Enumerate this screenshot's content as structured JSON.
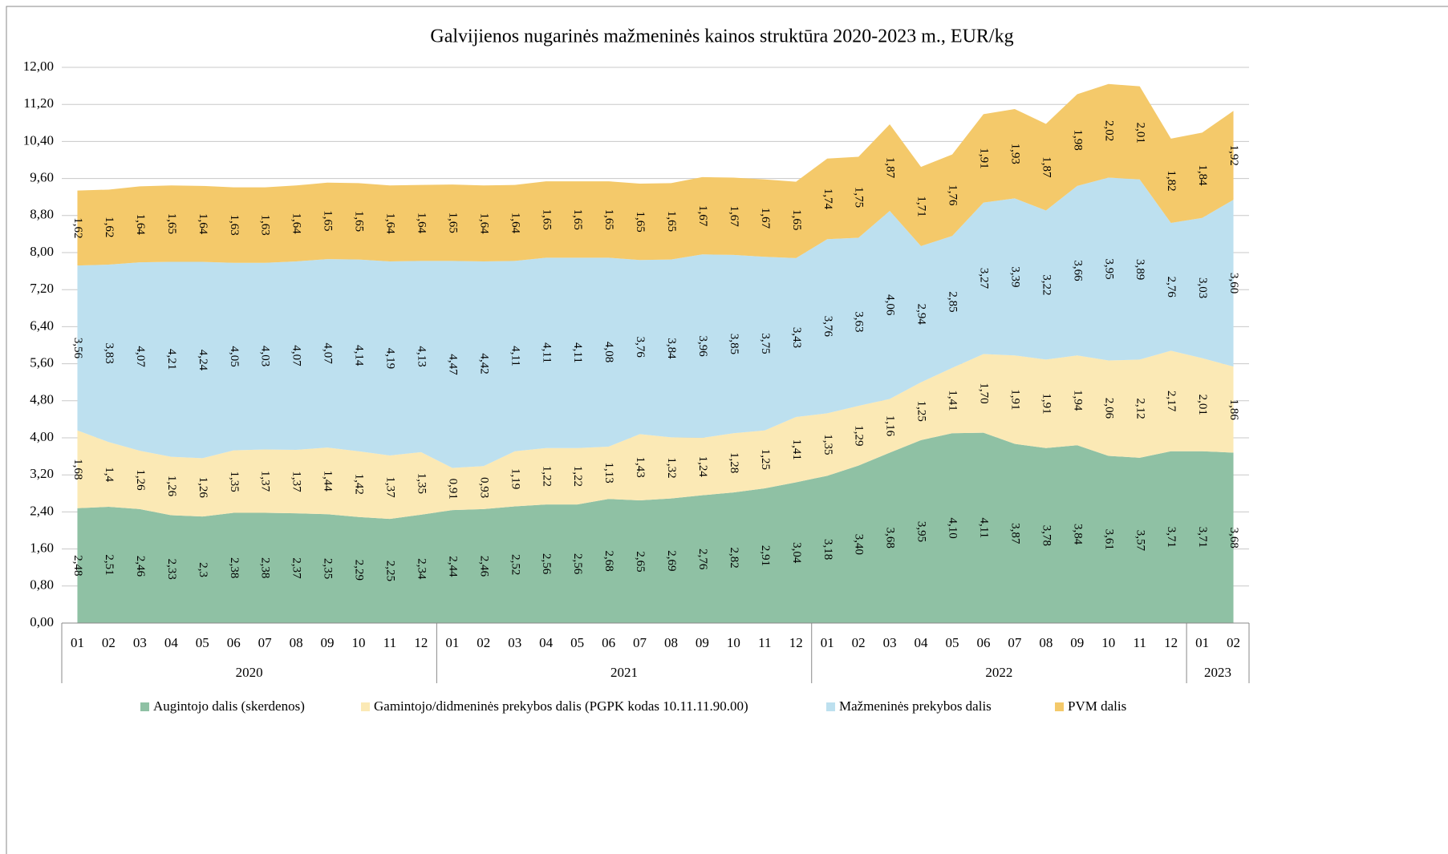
{
  "chart_data": {
    "type": "stacked_area",
    "title": "Galvijienos nugarinės mažmeninės kainos struktūra 2020-2023 m., EUR/kg",
    "category_groups": [
      {
        "label": "2020",
        "categories": [
          "01",
          "02",
          "03",
          "04",
          "05",
          "06",
          "07",
          "08",
          "09",
          "10",
          "11",
          "12"
        ]
      },
      {
        "label": "2021",
        "categories": [
          "01",
          "02",
          "03",
          "04",
          "05",
          "06",
          "07",
          "08",
          "09",
          "10",
          "11",
          "12"
        ]
      },
      {
        "label": "2022",
        "categories": [
          "01",
          "02",
          "03",
          "04",
          "05",
          "06",
          "07",
          "08",
          "09",
          "10",
          "11",
          "12"
        ]
      },
      {
        "label": "2023",
        "categories": [
          "01",
          "02"
        ]
      }
    ],
    "ylim": [
      0,
      12
    ],
    "yticks": [
      {
        "value": 0,
        "label": "0,00"
      },
      {
        "value": 0.8,
        "label": "0,80"
      },
      {
        "value": 1.6,
        "label": "1,60"
      },
      {
        "value": 2.4,
        "label": "2,40"
      },
      {
        "value": 3.2,
        "label": "3,20"
      },
      {
        "value": 4,
        "label": "4,00"
      },
      {
        "value": 4.8,
        "label": "4,80"
      },
      {
        "value": 5.6,
        "label": "5,60"
      },
      {
        "value": 6.4,
        "label": "6,40"
      },
      {
        "value": 7.2,
        "label": "7,20"
      },
      {
        "value": 8,
        "label": "8,00"
      },
      {
        "value": 8.8,
        "label": "8,80"
      },
      {
        "value": 9.6,
        "label": "9,60"
      },
      {
        "value": 10.4,
        "label": "10,40"
      },
      {
        "value": 11.2,
        "label": "11,20"
      },
      {
        "value": 12,
        "label": "12,00"
      }
    ],
    "grid": true,
    "legend": "bottom",
    "series": [
      {
        "name": "Augintojo dalis (skerdenos)",
        "color": "#8fc1a4",
        "values": [
          2.48,
          2.51,
          2.46,
          2.33,
          2.3,
          2.38,
          2.38,
          2.37,
          2.35,
          2.29,
          2.25,
          2.34,
          2.44,
          2.46,
          2.52,
          2.56,
          2.56,
          2.68,
          2.65,
          2.69,
          2.76,
          2.82,
          2.91,
          3.04,
          3.18,
          3.4,
          3.68,
          3.95,
          4.1,
          4.11,
          3.87,
          3.78,
          3.84,
          3.61,
          3.57,
          3.71,
          3.71,
          3.68
        ],
        "value_labels": [
          "2,48",
          "2,51",
          "2,46",
          "2,33",
          "2,3",
          "2,38",
          "2,38",
          "2,37",
          "2,35",
          "2,29",
          "2,25",
          "2,34",
          "2,44",
          "2,46",
          "2,52",
          "2,56",
          "2,56",
          "2,68",
          "2,65",
          "2,69",
          "2,76",
          "2,82",
          "2,91",
          "3,04",
          "3,18",
          "3,40",
          "3,68",
          "3,95",
          "4,10",
          "4,11",
          "3,87",
          "3,78",
          "3,84",
          "3,61",
          "3,57",
          "3,71",
          "3,71",
          "3,68"
        ]
      },
      {
        "name": "Gamintojo/didmeninės prekybos dalis (PGPK kodas 10.11.11.90.00)",
        "color": "#fbe9b5",
        "values": [
          1.68,
          1.4,
          1.26,
          1.26,
          1.26,
          1.35,
          1.37,
          1.37,
          1.44,
          1.42,
          1.37,
          1.35,
          0.91,
          0.93,
          1.19,
          1.22,
          1.22,
          1.13,
          1.43,
          1.32,
          1.24,
          1.28,
          1.25,
          1.41,
          1.35,
          1.29,
          1.16,
          1.25,
          1.41,
          1.7,
          1.91,
          1.91,
          1.94,
          2.06,
          2.12,
          2.17,
          2.01,
          1.86
        ],
        "value_labels": [
          "1,68",
          "1,4",
          "1,26",
          "1,26",
          "1,26",
          "1,35",
          "1,37",
          "1,37",
          "1,44",
          "1,42",
          "1,37",
          "1,35",
          "0,91",
          "0,93",
          "1,19",
          "1,22",
          "1,22",
          "1,13",
          "1,43",
          "1,32",
          "1,24",
          "1,28",
          "1,25",
          "1,41",
          "1,35",
          "1,29",
          "1,16",
          "1,25",
          "1,41",
          "1,70",
          "1,91",
          "1,91",
          "1,94",
          "2,06",
          "2,12",
          "2,17",
          "2,01",
          "1,86"
        ]
      },
      {
        "name": "Mažmeninės prekybos dalis",
        "color": "#bde0ef",
        "values": [
          3.56,
          3.83,
          4.07,
          4.21,
          4.24,
          4.05,
          4.03,
          4.07,
          4.07,
          4.14,
          4.19,
          4.13,
          4.47,
          4.42,
          4.11,
          4.11,
          4.11,
          4.08,
          3.76,
          3.84,
          3.96,
          3.85,
          3.75,
          3.43,
          3.76,
          3.63,
          4.06,
          2.94,
          2.85,
          3.27,
          3.39,
          3.22,
          3.66,
          3.95,
          3.89,
          2.76,
          3.03,
          3.6
        ],
        "value_labels": [
          "3,56",
          "3,83",
          "4,07",
          "4,21",
          "4,24",
          "4,05",
          "4,03",
          "4,07",
          "4,07",
          "4,14",
          "4,19",
          "4,13",
          "4,47",
          "4,42",
          "4,11",
          "4,11",
          "4,11",
          "4,08",
          "3,76",
          "3,84",
          "3,96",
          "3,85",
          "3,75",
          "3,43",
          "3,76",
          "3,63",
          "4,06",
          "2,94",
          "2,85",
          "3,27",
          "3,39",
          "3,22",
          "3,66",
          "3,95",
          "3,89",
          "2,76",
          "3,03",
          "3,60"
        ]
      },
      {
        "name": "PVM dalis",
        "color": "#f4c96a",
        "values": [
          1.62,
          1.62,
          1.64,
          1.65,
          1.64,
          1.63,
          1.63,
          1.64,
          1.65,
          1.65,
          1.64,
          1.64,
          1.65,
          1.64,
          1.64,
          1.65,
          1.65,
          1.65,
          1.65,
          1.65,
          1.67,
          1.67,
          1.67,
          1.65,
          1.74,
          1.75,
          1.87,
          1.71,
          1.76,
          1.91,
          1.93,
          1.87,
          1.98,
          2.02,
          2.01,
          1.82,
          1.84,
          1.92
        ],
        "value_labels": [
          "1,62",
          "1,62",
          "1,64",
          "1,65",
          "1,64",
          "1,63",
          "1,63",
          "1,64",
          "1,65",
          "1,65",
          "1,64",
          "1,64",
          "1,65",
          "1,64",
          "1,64",
          "1,65",
          "1,65",
          "1,65",
          "1,65",
          "1,65",
          "1,67",
          "1,67",
          "1,67",
          "1,65",
          "1,74",
          "1,75",
          "1,87",
          "1,71",
          "1,76",
          "1,91",
          "1,93",
          "1,87",
          "1,98",
          "2,02",
          "2,01",
          "1,82",
          "1,84",
          "1,92"
        ]
      }
    ]
  }
}
